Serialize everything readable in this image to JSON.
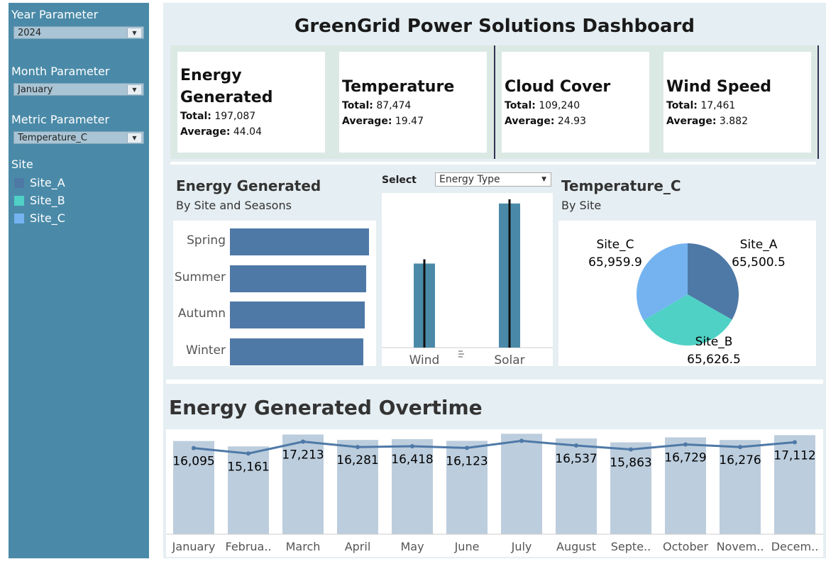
{
  "sidebar": {
    "year_label": "Year Parameter",
    "year_value": "2024",
    "month_label": "Month Parameter",
    "month_value": "January",
    "metric_label": "Metric Parameter",
    "metric_value": "Temperature_C",
    "legend_title": "Site",
    "legend": [
      {
        "label": "Site_A",
        "color": "#4e79a7"
      },
      {
        "label": "Site_B",
        "color": "#4fd1c5"
      },
      {
        "label": "Site_C",
        "color": "#74b3f0"
      }
    ]
  },
  "dashboard": {
    "title": "GreenGrid Power Solutions Dashboard"
  },
  "kpis": [
    {
      "title_l1": "Energy",
      "title_l2": "Generated",
      "total_label": "Total:",
      "total": "197,087",
      "avg_label": "Average:",
      "avg": "44.04"
    },
    {
      "title_l1": "Temperature",
      "title_l2": "",
      "total_label": "Total:",
      "total": "87,474",
      "avg_label": "Average:",
      "avg": "19.47"
    },
    {
      "title_l1": "Cloud Cover",
      "title_l2": "",
      "total_label": "Total:",
      "total": "109,240",
      "avg_label": "Average:",
      "avg": "24.93"
    },
    {
      "title_l1": "Wind Speed",
      "title_l2": "",
      "total_label": "Total:",
      "total": "17,461",
      "avg_label": "Average:",
      "avg": "3.882"
    }
  ],
  "energy_section": {
    "title": "Energy Generated",
    "subtitle": "By Site and Seasons",
    "select_label": "Select",
    "select_value": "Energy Type"
  },
  "temp_section": {
    "title": "Temperature_C",
    "subtitle": "By Site"
  },
  "overtime": {
    "title": "Energy Generated Overtime"
  },
  "chart_data": [
    {
      "type": "bar",
      "orientation": "horizontal",
      "categories": [
        "Spring",
        "Summer",
        "Autumn",
        "Winter"
      ],
      "values": [
        50200,
        49100,
        48600,
        48100
      ],
      "color": "#4e79a7"
    },
    {
      "type": "bar",
      "categories": [
        "Wind",
        "Solar"
      ],
      "values": [
        49000,
        84000
      ],
      "color": "#4a8aa8"
    },
    {
      "type": "pie",
      "categories": [
        "Site_A",
        "Site_B",
        "Site_C"
      ],
      "labels": [
        "65,500.5",
        "65,626.5",
        "65,959.9"
      ],
      "values": [
        65500.5,
        65626.5,
        65959.9
      ],
      "colors": [
        "#4e79a7",
        "#4fd1c5",
        "#74b3f0"
      ]
    },
    {
      "type": "bar",
      "categories": [
        "January",
        "Februa..",
        "March",
        "April",
        "May",
        "June",
        "July",
        "August",
        "Septe..",
        "October",
        "Novem..",
        "Decem.."
      ],
      "values": [
        16095,
        15161,
        17213,
        16281,
        16418,
        16123,
        17350,
        16537,
        15863,
        16729,
        16276,
        17112
      ],
      "labels": [
        "16,095",
        "15,161",
        "17,213",
        "16,281",
        "16,418",
        "16,123",
        "",
        "16,537",
        "15,863",
        "16,729",
        "16,276",
        "17,112"
      ],
      "bar_color": "#bccddd",
      "line_color": "#4e79a7"
    }
  ]
}
